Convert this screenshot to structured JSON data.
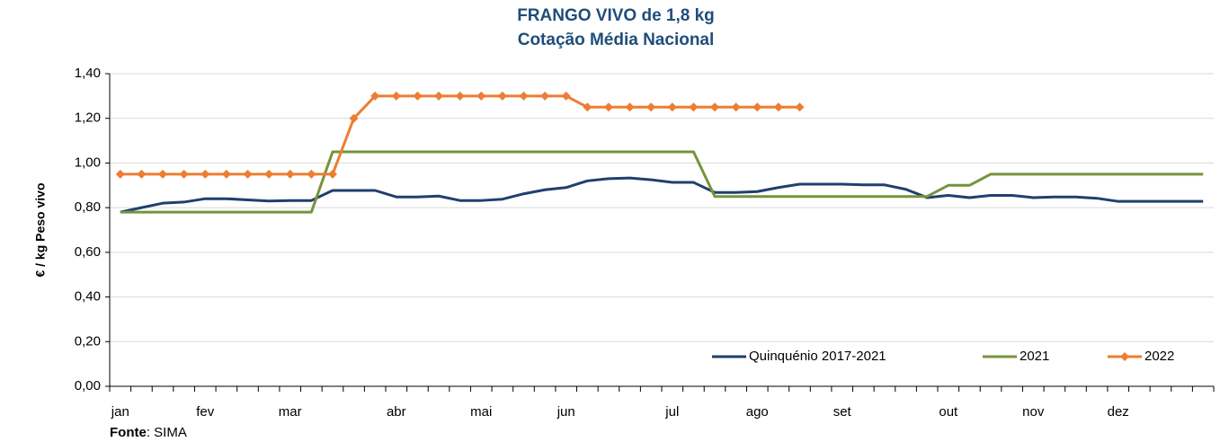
{
  "chart_data": {
    "type": "line",
    "title": "FRANGO VIVO de 1,8 kg",
    "subtitle": "Cotação Média Nacional",
    "y_label": "€ / kg Peso vivo",
    "source_label": "Fonte",
    "source": ": SIMA",
    "categories": [
      "jan",
      null,
      null,
      null,
      "fev",
      null,
      null,
      null,
      "mar",
      null,
      null,
      null,
      null,
      "abr",
      null,
      null,
      null,
      "mai",
      null,
      null,
      null,
      "jun",
      null,
      null,
      null,
      null,
      "jul",
      null,
      null,
      null,
      "ago",
      null,
      null,
      null,
      "set",
      null,
      null,
      null,
      null,
      "out",
      null,
      null,
      null,
      "nov",
      null,
      null,
      null,
      "dez",
      null,
      null,
      null,
      null
    ],
    "series": [
      {
        "name": "Quinquénio 2017-2021",
        "color": "#203f6e",
        "marker": false,
        "values": [
          0.78,
          0.8,
          0.82,
          0.825,
          0.84,
          0.84,
          0.835,
          0.83,
          0.832,
          0.832,
          0.877,
          0.877,
          0.877,
          0.848,
          0.848,
          0.852,
          0.832,
          0.832,
          0.838,
          0.862,
          0.88,
          0.89,
          0.92,
          0.93,
          0.933,
          0.925,
          0.913,
          0.913,
          0.868,
          0.868,
          0.872,
          0.89,
          0.905,
          0.905,
          0.905,
          0.902,
          0.902,
          0.882,
          0.845,
          0.855,
          0.845,
          0.855,
          0.855,
          0.845,
          0.848,
          0.848,
          0.842,
          0.828,
          0.828,
          0.828,
          0.828,
          0.828
        ]
      },
      {
        "name": "2021",
        "color": "#77933c",
        "marker": false,
        "values": [
          0.78,
          0.78,
          0.78,
          0.78,
          0.78,
          0.78,
          0.78,
          0.78,
          0.78,
          0.78,
          1.05,
          1.05,
          1.05,
          1.05,
          1.05,
          1.05,
          1.05,
          1.05,
          1.05,
          1.05,
          1.05,
          1.05,
          1.05,
          1.05,
          1.05,
          1.05,
          1.05,
          1.05,
          0.85,
          0.85,
          0.85,
          0.85,
          0.85,
          0.85,
          0.85,
          0.85,
          0.85,
          0.85,
          0.85,
          0.9,
          0.9,
          0.95,
          0.95,
          0.95,
          0.95,
          0.95,
          0.95,
          0.95,
          0.95,
          0.95,
          0.95,
          0.95
        ]
      },
      {
        "name": "2022",
        "color": "#ed7d31",
        "marker": true,
        "values": [
          0.95,
          0.95,
          0.95,
          0.95,
          0.95,
          0.95,
          0.95,
          0.95,
          0.95,
          0.95,
          0.95,
          1.2,
          1.3,
          1.3,
          1.3,
          1.3,
          1.3,
          1.3,
          1.3,
          1.3,
          1.3,
          1.3,
          1.25,
          1.25,
          1.25,
          1.25,
          1.25,
          1.25,
          1.25,
          1.25,
          1.25,
          1.25,
          1.25,
          null,
          null,
          null,
          null,
          null,
          null,
          null,
          null,
          null,
          null,
          null,
          null,
          null,
          null,
          null,
          null,
          null,
          null,
          null
        ]
      }
    ],
    "ylim": [
      0,
      1.4
    ],
    "yticks": [
      {
        "value": 0,
        "label": "0,00"
      },
      {
        "value": 0.2,
        "label": "0,20"
      },
      {
        "value": 0.4,
        "label": "0,40"
      },
      {
        "value": 0.6,
        "label": "0,60"
      },
      {
        "value": 0.8,
        "label": "0,80"
      },
      {
        "value": 1.0,
        "label": "1,00"
      },
      {
        "value": 1.2,
        "label": "1,20"
      },
      {
        "value": 1.4,
        "label": "1,40"
      }
    ],
    "grid": true,
    "legend": "bottom-right"
  }
}
